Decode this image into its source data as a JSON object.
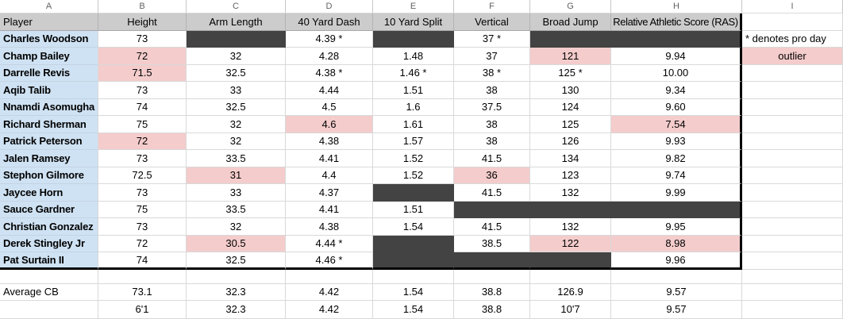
{
  "colors": {
    "header_bg": "#cccccc",
    "player_column_bg": "#cfe2f3",
    "highlight_pink": "#f4cccc",
    "missing_data_black": "#434343",
    "table_outline": "#000000"
  },
  "sheet": {
    "column_letters": [
      "A",
      "B",
      "C",
      "D",
      "E",
      "F",
      "G",
      "H",
      "I"
    ],
    "headers": [
      "Player",
      "Height",
      "Arm Length",
      "40 Yard Dash",
      "10 Yard Split",
      "Vertical",
      "Broad Jump",
      "Relative Athletic Score (RAS)"
    ],
    "rows": [
      {
        "player": "Charles Woodson",
        "cells": [
          [
            "73",
            ""
          ],
          [
            "",
            "black"
          ],
          [
            "4.39 *",
            ""
          ],
          [
            "",
            "black"
          ],
          [
            "37 *",
            ""
          ],
          [
            "",
            "black"
          ],
          [
            "",
            "black"
          ]
        ],
        "note": {
          "text": "* denotes pro day",
          "style": "",
          "align": "left"
        }
      },
      {
        "player": "Champ Bailey",
        "cells": [
          [
            "72",
            "pink"
          ],
          [
            "32",
            ""
          ],
          [
            "4.28",
            ""
          ],
          [
            "1.48",
            ""
          ],
          [
            "37",
            ""
          ],
          [
            "121",
            "pink"
          ],
          [
            "9.94",
            ""
          ]
        ],
        "note": {
          "text": "outlier",
          "style": "pink",
          "align": "center"
        }
      },
      {
        "player": "Darrelle Revis",
        "cells": [
          [
            "71.5",
            "pink"
          ],
          [
            "32.5",
            ""
          ],
          [
            "4.38 *",
            ""
          ],
          [
            "1.46 *",
            ""
          ],
          [
            "38 *",
            ""
          ],
          [
            "125 *",
            ""
          ],
          [
            "10.00",
            ""
          ]
        ]
      },
      {
        "player": "Aqib Talib",
        "cells": [
          [
            "73",
            ""
          ],
          [
            "33",
            ""
          ],
          [
            "4.44",
            ""
          ],
          [
            "1.51",
            ""
          ],
          [
            "38",
            ""
          ],
          [
            "130",
            ""
          ],
          [
            "9.34",
            ""
          ]
        ]
      },
      {
        "player": "Nnamdi Asomugha",
        "cells": [
          [
            "74",
            ""
          ],
          [
            "32.5",
            ""
          ],
          [
            "4.5",
            ""
          ],
          [
            "1.6",
            ""
          ],
          [
            "37.5",
            ""
          ],
          [
            "124",
            ""
          ],
          [
            "9.60",
            ""
          ]
        ]
      },
      {
        "player": "Richard Sherman",
        "cells": [
          [
            "75",
            ""
          ],
          [
            "32",
            ""
          ],
          [
            "4.6",
            "pink"
          ],
          [
            "1.61",
            ""
          ],
          [
            "38",
            ""
          ],
          [
            "125",
            ""
          ],
          [
            "7.54",
            "pink"
          ]
        ]
      },
      {
        "player": "Patrick Peterson",
        "cells": [
          [
            "72",
            "pink"
          ],
          [
            "32",
            ""
          ],
          [
            "4.38",
            ""
          ],
          [
            "1.57",
            ""
          ],
          [
            "38",
            ""
          ],
          [
            "126",
            ""
          ],
          [
            "9.93",
            ""
          ]
        ]
      },
      {
        "player": "Jalen Ramsey",
        "cells": [
          [
            "73",
            ""
          ],
          [
            "33.5",
            ""
          ],
          [
            "4.41",
            ""
          ],
          [
            "1.52",
            ""
          ],
          [
            "41.5",
            ""
          ],
          [
            "134",
            ""
          ],
          [
            "9.82",
            ""
          ]
        ]
      },
      {
        "player": "Stephon Gilmore",
        "cells": [
          [
            "72.5",
            ""
          ],
          [
            "31",
            "pink"
          ],
          [
            "4.4",
            ""
          ],
          [
            "1.52",
            ""
          ],
          [
            "36",
            "pink"
          ],
          [
            "123",
            ""
          ],
          [
            "9.74",
            ""
          ]
        ]
      },
      {
        "player": "Jaycee Horn",
        "cells": [
          [
            "73",
            ""
          ],
          [
            "33",
            ""
          ],
          [
            "4.37",
            ""
          ],
          [
            "",
            "black"
          ],
          [
            "41.5",
            ""
          ],
          [
            "132",
            ""
          ],
          [
            "9.99",
            ""
          ]
        ]
      },
      {
        "player": "Sauce Gardner",
        "cells": [
          [
            "75",
            ""
          ],
          [
            "33.5",
            ""
          ],
          [
            "4.41",
            ""
          ],
          [
            "1.51",
            ""
          ],
          [
            "",
            "black"
          ],
          [
            "",
            "black"
          ],
          [
            "",
            "black"
          ]
        ]
      },
      {
        "player": "Christian Gonzalez",
        "cells": [
          [
            "73",
            ""
          ],
          [
            "32",
            ""
          ],
          [
            "4.38",
            ""
          ],
          [
            "1.54",
            ""
          ],
          [
            "41.5",
            ""
          ],
          [
            "132",
            ""
          ],
          [
            "9.95",
            ""
          ]
        ]
      },
      {
        "player": "Derek Stingley Jr",
        "cells": [
          [
            "72",
            ""
          ],
          [
            "30.5",
            "pink"
          ],
          [
            "4.44 *",
            ""
          ],
          [
            "",
            "black"
          ],
          [
            "38.5",
            ""
          ],
          [
            "122",
            "pink"
          ],
          [
            "8.98",
            "pink"
          ]
        ]
      },
      {
        "player": "Pat Surtain II",
        "cells": [
          [
            "74",
            ""
          ],
          [
            "32.5",
            ""
          ],
          [
            "4.46 *",
            ""
          ],
          [
            "",
            "black"
          ],
          [
            "",
            "black"
          ],
          [
            "",
            "black"
          ],
          [
            "9.96",
            ""
          ]
        ]
      }
    ],
    "footer_rows": [
      {
        "label": "Average CB",
        "values": [
          "73.1",
          "32.3",
          "4.42",
          "1.54",
          "38.8",
          "126.9",
          "9.57"
        ]
      },
      {
        "label": "",
        "values": [
          "6'1",
          "32.3",
          "4.42",
          "1.54",
          "38.8",
          "10'7",
          "9.57"
        ]
      }
    ],
    "legend": {
      "pro_day_note": "* denotes pro day",
      "outlier_label": "outlier"
    }
  }
}
